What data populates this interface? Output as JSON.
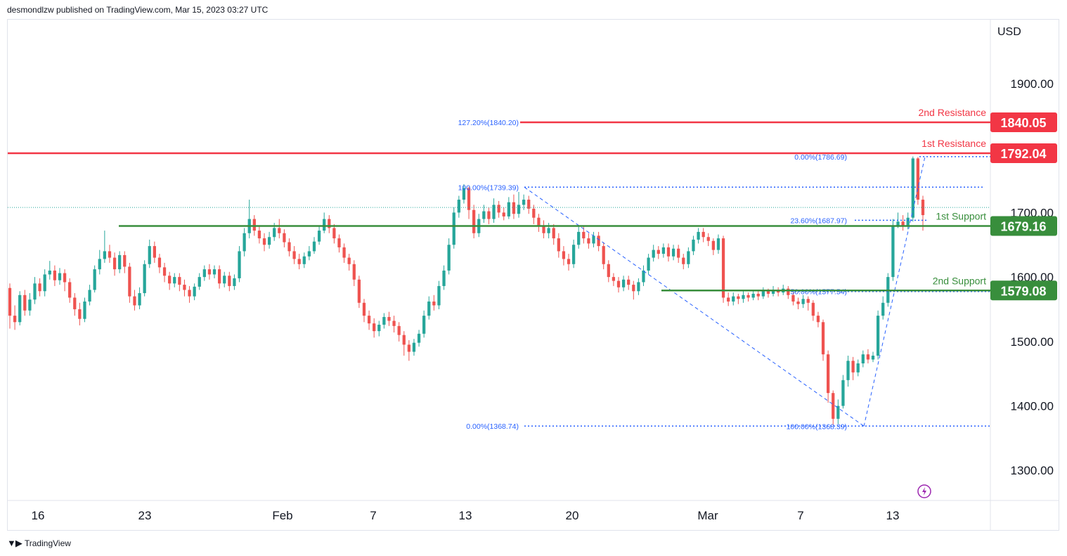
{
  "header": {
    "text": "desmondlzw published on TradingView.com, Mar 15, 2023 03:27 UTC"
  },
  "footer": {
    "brand": "TradingView",
    "logo_icon": "tradingview-logo-icon"
  },
  "colors": {
    "up": "#26a69a",
    "down": "#ef5350",
    "resistance": "#f23645",
    "support": "#388e3c",
    "fib": "#2962ff",
    "flash": "#9c27b0"
  },
  "chart_data": {
    "type": "candlestick",
    "currency": "USD",
    "y_ticks": [
      {
        "value": 1900,
        "label": "1900.00"
      },
      {
        "value": 1800,
        "label": "1800.00"
      },
      {
        "value": 1700,
        "label": "1700.00"
      },
      {
        "value": 1600,
        "label": "1600.00"
      },
      {
        "value": 1500,
        "label": "1500.00"
      },
      {
        "value": 1400,
        "label": "1400.00"
      },
      {
        "value": 1300,
        "label": "1300.00"
      }
    ],
    "x_ticks": [
      "16",
      "23",
      "Feb",
      "7",
      "13",
      "20",
      "Mar",
      "7",
      "13"
    ],
    "levels": [
      {
        "name": "2nd Resistance",
        "value": 1840.05,
        "label": "1840.05",
        "kind": "resistance"
      },
      {
        "name": "1st Resistance",
        "value": 1792.04,
        "label": "1792.04",
        "kind": "resistance"
      },
      {
        "name": "1st Support",
        "value": 1679.16,
        "label": "1679.16",
        "kind": "support"
      },
      {
        "name": "2nd Support",
        "value": 1579.08,
        "label": "1579.08",
        "kind": "support"
      }
    ],
    "fib_labels": [
      {
        "text": "127.20%(1840.20)",
        "value": 1840.2
      },
      {
        "text": "100.00%(1739.39)",
        "value": 1739.39
      },
      {
        "text": "0.00%(1368.74)",
        "value": 1368.74
      },
      {
        "text": "0.00%(1786.69)",
        "value": 1786.69
      },
      {
        "text": "23.60%(1687.97)",
        "value": 1687.97
      },
      {
        "text": "50.00%(1577.54)",
        "value": 1577.54
      },
      {
        "text": "100.00%(1368.39)",
        "value": 1368.39
      }
    ],
    "last_price": 1708,
    "candles": [
      [
        1583,
        1540,
        1590,
        1520
      ],
      [
        1540,
        1530,
        1556,
        1518
      ],
      [
        1530,
        1572,
        1578,
        1525
      ],
      [
        1572,
        1548,
        1580,
        1540
      ],
      [
        1548,
        1565,
        1575,
        1540
      ],
      [
        1565,
        1590,
        1600,
        1558
      ],
      [
        1590,
        1578,
        1598,
        1570
      ],
      [
        1578,
        1604,
        1612,
        1570
      ],
      [
        1604,
        1610,
        1625,
        1596
      ],
      [
        1610,
        1595,
        1618,
        1586
      ],
      [
        1595,
        1606,
        1614,
        1588
      ],
      [
        1606,
        1592,
        1612,
        1578
      ],
      [
        1592,
        1568,
        1598,
        1560
      ],
      [
        1568,
        1550,
        1575,
        1540
      ],
      [
        1550,
        1535,
        1560,
        1525
      ],
      [
        1535,
        1562,
        1568,
        1530
      ],
      [
        1562,
        1580,
        1588,
        1556
      ],
      [
        1580,
        1612,
        1618,
        1576
      ],
      [
        1612,
        1628,
        1642,
        1604
      ],
      [
        1628,
        1640,
        1672,
        1622
      ],
      [
        1640,
        1630,
        1650,
        1622
      ],
      [
        1630,
        1612,
        1638,
        1602
      ],
      [
        1612,
        1634,
        1640,
        1606
      ],
      [
        1634,
        1616,
        1640,
        1606
      ],
      [
        1616,
        1570,
        1622,
        1560
      ],
      [
        1570,
        1556,
        1580,
        1548
      ],
      [
        1556,
        1575,
        1584,
        1550
      ],
      [
        1575,
        1620,
        1626,
        1570
      ],
      [
        1620,
        1648,
        1658,
        1614
      ],
      [
        1648,
        1630,
        1655,
        1622
      ],
      [
        1630,
        1615,
        1636,
        1606
      ],
      [
        1615,
        1602,
        1622,
        1592
      ],
      [
        1602,
        1590,
        1608,
        1580
      ],
      [
        1590,
        1600,
        1606,
        1584
      ],
      [
        1600,
        1588,
        1606,
        1578
      ],
      [
        1588,
        1580,
        1596,
        1570
      ],
      [
        1580,
        1570,
        1586,
        1560
      ],
      [
        1570,
        1585,
        1590,
        1564
      ],
      [
        1585,
        1600,
        1606,
        1580
      ],
      [
        1600,
        1612,
        1618,
        1594
      ],
      [
        1612,
        1604,
        1620,
        1596
      ],
      [
        1604,
        1612,
        1618,
        1598
      ],
      [
        1612,
        1590,
        1618,
        1582
      ],
      [
        1590,
        1602,
        1608,
        1584
      ],
      [
        1602,
        1586,
        1608,
        1578
      ],
      [
        1586,
        1598,
        1604,
        1580
      ],
      [
        1598,
        1640,
        1648,
        1592
      ],
      [
        1640,
        1668,
        1676,
        1632
      ],
      [
        1668,
        1690,
        1720,
        1660
      ],
      [
        1690,
        1672,
        1696,
        1664
      ],
      [
        1672,
        1660,
        1680,
        1652
      ],
      [
        1660,
        1650,
        1668,
        1640
      ],
      [
        1650,
        1662,
        1670,
        1644
      ],
      [
        1662,
        1676,
        1684,
        1656
      ],
      [
        1676,
        1668,
        1690,
        1660
      ],
      [
        1668,
        1654,
        1674,
        1646
      ],
      [
        1654,
        1640,
        1660,
        1632
      ],
      [
        1640,
        1628,
        1648,
        1620
      ],
      [
        1628,
        1620,
        1636,
        1612
      ],
      [
        1620,
        1632,
        1638,
        1614
      ],
      [
        1632,
        1640,
        1648,
        1626
      ],
      [
        1640,
        1655,
        1662,
        1636
      ],
      [
        1655,
        1672,
        1680,
        1650
      ],
      [
        1672,
        1690,
        1700,
        1668
      ],
      [
        1690,
        1676,
        1696,
        1668
      ],
      [
        1676,
        1660,
        1682,
        1652
      ],
      [
        1660,
        1646,
        1666,
        1638
      ],
      [
        1646,
        1630,
        1652,
        1622
      ],
      [
        1630,
        1620,
        1636,
        1610
      ],
      [
        1620,
        1596,
        1626,
        1586
      ],
      [
        1596,
        1560,
        1602,
        1552
      ],
      [
        1560,
        1540,
        1566,
        1530
      ],
      [
        1540,
        1528,
        1548,
        1518
      ],
      [
        1528,
        1516,
        1536,
        1506
      ],
      [
        1516,
        1526,
        1532,
        1508
      ],
      [
        1526,
        1538,
        1544,
        1520
      ],
      [
        1538,
        1532,
        1546,
        1524
      ],
      [
        1532,
        1524,
        1540,
        1514
      ],
      [
        1524,
        1510,
        1530,
        1500
      ],
      [
        1510,
        1495,
        1516,
        1478
      ],
      [
        1495,
        1484,
        1502,
        1470
      ],
      [
        1484,
        1498,
        1504,
        1478
      ],
      [
        1498,
        1512,
        1518,
        1492
      ],
      [
        1512,
        1540,
        1548,
        1506
      ],
      [
        1540,
        1562,
        1570,
        1534
      ],
      [
        1562,
        1556,
        1572,
        1548
      ],
      [
        1556,
        1586,
        1594,
        1550
      ],
      [
        1586,
        1610,
        1618,
        1580
      ],
      [
        1610,
        1650,
        1660,
        1604
      ],
      [
        1650,
        1700,
        1708,
        1644
      ],
      [
        1700,
        1720,
        1726,
        1692
      ],
      [
        1720,
        1738,
        1744,
        1714
      ],
      [
        1738,
        1704,
        1740,
        1690
      ],
      [
        1704,
        1668,
        1712,
        1660
      ],
      [
        1668,
        1690,
        1698,
        1662
      ],
      [
        1690,
        1702,
        1712,
        1684
      ],
      [
        1702,
        1690,
        1708,
        1682
      ],
      [
        1690,
        1712,
        1722,
        1684
      ],
      [
        1712,
        1700,
        1718,
        1692
      ],
      [
        1700,
        1694,
        1708,
        1688
      ],
      [
        1694,
        1716,
        1724,
        1690
      ],
      [
        1716,
        1698,
        1728,
        1690
      ],
      [
        1698,
        1712,
        1732,
        1692
      ],
      [
        1712,
        1720,
        1728,
        1704
      ],
      [
        1720,
        1706,
        1726,
        1698
      ],
      [
        1706,
        1692,
        1712,
        1682
      ],
      [
        1692,
        1680,
        1698,
        1670
      ],
      [
        1680,
        1668,
        1688,
        1660
      ],
      [
        1668,
        1676,
        1684,
        1660
      ],
      [
        1676,
        1660,
        1682,
        1650
      ],
      [
        1660,
        1640,
        1668,
        1630
      ],
      [
        1640,
        1628,
        1648,
        1618
      ],
      [
        1628,
        1620,
        1636,
        1610
      ],
      [
        1620,
        1650,
        1658,
        1614
      ],
      [
        1650,
        1670,
        1678,
        1644
      ],
      [
        1670,
        1660,
        1678,
        1652
      ],
      [
        1660,
        1652,
        1668,
        1644
      ],
      [
        1652,
        1664,
        1670,
        1646
      ],
      [
        1664,
        1648,
        1670,
        1640
      ],
      [
        1648,
        1620,
        1654,
        1612
      ],
      [
        1620,
        1600,
        1626,
        1592
      ],
      [
        1600,
        1594,
        1606,
        1586
      ],
      [
        1594,
        1584,
        1600,
        1576
      ],
      [
        1584,
        1596,
        1602,
        1578
      ],
      [
        1596,
        1588,
        1602,
        1580
      ],
      [
        1588,
        1578,
        1594,
        1565
      ],
      [
        1578,
        1592,
        1598,
        1572
      ],
      [
        1592,
        1610,
        1618,
        1586
      ],
      [
        1610,
        1630,
        1636,
        1604
      ],
      [
        1630,
        1642,
        1650,
        1624
      ],
      [
        1642,
        1636,
        1648,
        1628
      ],
      [
        1636,
        1646,
        1652,
        1630
      ],
      [
        1646,
        1632,
        1652,
        1624
      ],
      [
        1632,
        1644,
        1650,
        1626
      ],
      [
        1644,
        1630,
        1650,
        1622
      ],
      [
        1630,
        1620,
        1636,
        1612
      ],
      [
        1620,
        1640,
        1646,
        1614
      ],
      [
        1640,
        1658,
        1664,
        1634
      ],
      [
        1658,
        1670,
        1676,
        1652
      ],
      [
        1670,
        1662,
        1676,
        1654
      ],
      [
        1662,
        1656,
        1668,
        1648
      ],
      [
        1656,
        1642,
        1660,
        1634
      ],
      [
        1642,
        1660,
        1666,
        1636
      ],
      [
        1660,
        1568,
        1664,
        1560
      ],
      [
        1568,
        1562,
        1576,
        1555
      ],
      [
        1562,
        1570,
        1576,
        1556
      ],
      [
        1570,
        1566,
        1574,
        1558
      ],
      [
        1566,
        1572,
        1578,
        1560
      ],
      [
        1572,
        1568,
        1576,
        1562
      ],
      [
        1568,
        1574,
        1580,
        1564
      ],
      [
        1574,
        1570,
        1578,
        1564
      ],
      [
        1570,
        1578,
        1584,
        1566
      ],
      [
        1578,
        1574,
        1582,
        1568
      ],
      [
        1574,
        1580,
        1586,
        1570
      ],
      [
        1580,
        1576,
        1584,
        1570
      ],
      [
        1576,
        1582,
        1588,
        1572
      ],
      [
        1582,
        1572,
        1586,
        1566
      ],
      [
        1572,
        1562,
        1576,
        1556
      ],
      [
        1562,
        1558,
        1568,
        1550
      ],
      [
        1558,
        1566,
        1572,
        1552
      ],
      [
        1566,
        1560,
        1570,
        1548
      ],
      [
        1560,
        1540,
        1564,
        1532
      ],
      [
        1540,
        1530,
        1546,
        1522
      ],
      [
        1530,
        1480,
        1534,
        1470
      ],
      [
        1480,
        1420,
        1486,
        1405
      ],
      [
        1420,
        1380,
        1424,
        1370
      ],
      [
        1380,
        1400,
        1410,
        1372
      ],
      [
        1400,
        1440,
        1448,
        1396
      ],
      [
        1440,
        1470,
        1478,
        1430
      ],
      [
        1470,
        1452,
        1476,
        1440
      ],
      [
        1452,
        1466,
        1472,
        1446
      ],
      [
        1466,
        1480,
        1486,
        1460
      ],
      [
        1480,
        1472,
        1488,
        1466
      ],
      [
        1472,
        1478,
        1484,
        1468
      ],
      [
        1478,
        1540,
        1548,
        1472
      ],
      [
        1540,
        1560,
        1570,
        1534
      ],
      [
        1560,
        1600,
        1606,
        1554
      ],
      [
        1600,
        1680,
        1690,
        1594
      ],
      [
        1680,
        1686,
        1700,
        1676
      ],
      [
        1686,
        1680,
        1696,
        1672
      ],
      [
        1680,
        1692,
        1700,
        1674
      ],
      [
        1692,
        1784,
        1787,
        1686
      ],
      [
        1784,
        1720,
        1786,
        1712
      ],
      [
        1720,
        1696,
        1726,
        1672
      ]
    ]
  }
}
